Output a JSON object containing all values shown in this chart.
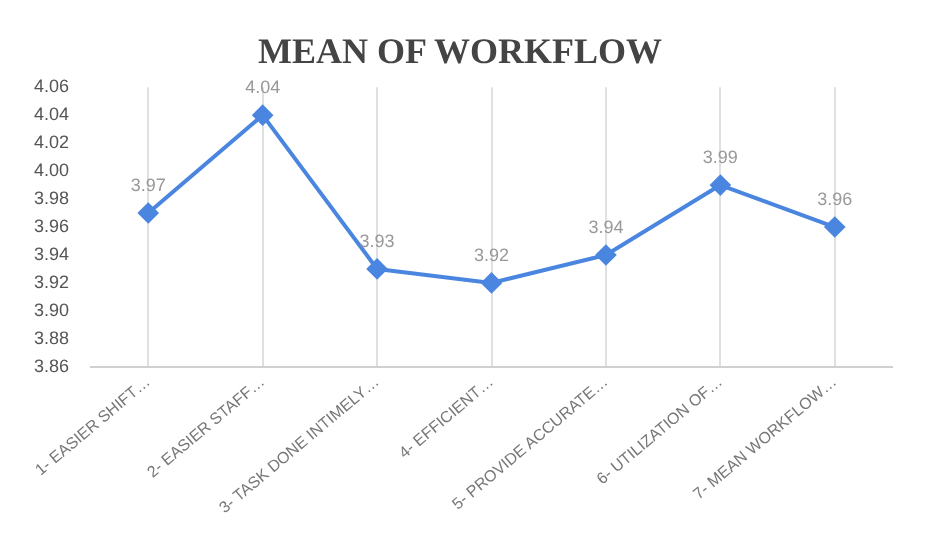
{
  "chart_data": {
    "type": "line",
    "title": "MEAN OF WORKFLOW",
    "categories": [
      "1- EASIER SHIFT…",
      "2- EASIER STAFF…",
      "3- TASK DONE INTIMELY…",
      "4- EFFICIENT…",
      "5- PROVIDE ACCURATE…",
      "6- UTILIZATION OF…",
      "7- MEAN WORKFLOW…"
    ],
    "series": [
      {
        "color": "#4a86e0",
        "values": [
          3.97,
          4.04,
          3.93,
          3.92,
          3.94,
          3.99,
          3.96
        ]
      }
    ],
    "ylim": [
      3.86,
      4.06
    ],
    "yticks": [
      3.86,
      3.88,
      {
        "value": 3.9,
        "label": "3.90"
      },
      3.92,
      3.94,
      3.96,
      3.98,
      {
        "value": 4.0,
        "label": "4.00"
      },
      4.02,
      4.04,
      4.06
    ],
    "grid": "x",
    "marker": "diamond",
    "line_style": "solid",
    "data_labels": true,
    "legend": false
  }
}
